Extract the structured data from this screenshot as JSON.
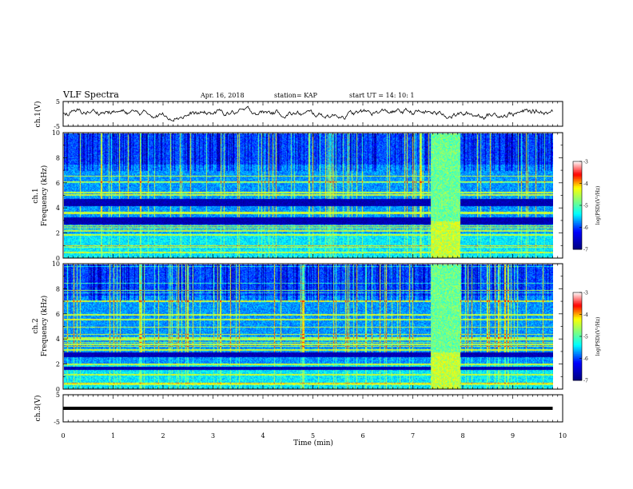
{
  "header": {
    "title": "VLF Spectra",
    "date": "Apr. 16, 2018",
    "station": "station= KAP",
    "start_time": "start  UT =   14: 10: 1"
  },
  "chart_data": [
    {
      "type": "line",
      "panel": "ch1-waveform",
      "ylabel": "ch.1(V)",
      "ylim": [
        -5,
        5
      ],
      "yticks": [
        "5",
        "-5"
      ],
      "xlim": [
        0,
        10
      ],
      "series": [
        {
          "x_range": [
            0,
            9.8
          ],
          "mean": 0.2,
          "amplitude": 1.2
        }
      ]
    },
    {
      "type": "heatmap",
      "panel": "ch1-spectrogram",
      "ylabel_line1": "ch.1",
      "ylabel_line2": "Frequency  (kHz)",
      "ylim": [
        0,
        10
      ],
      "yticks": [
        "0",
        "2",
        "4",
        "6",
        "8",
        "10"
      ],
      "xlim": [
        0,
        10
      ],
      "x_data_end": 9.8,
      "colorbar": {
        "label": "log(PSD)(V²/Hz)",
        "range": [
          -7,
          -3
        ],
        "ticks": [
          "-3",
          "-4",
          "-5",
          "-6",
          "-7"
        ]
      },
      "burst_interval_min": [
        7.35,
        7.95
      ],
      "dark_bands_khz": [
        [
          2.75,
          3.3
        ],
        [
          4.2,
          4.75
        ]
      ],
      "bright_lines_khz": [
        0.5,
        0.9,
        1.9,
        2.2,
        2.5,
        3.6,
        3.7,
        5.1,
        5.3,
        6.6
      ]
    },
    {
      "type": "heatmap",
      "panel": "ch2-spectrogram",
      "ylabel_line1": "ch.2",
      "ylabel_line2": "Frequency  (kHz)",
      "ylim": [
        0,
        10
      ],
      "yticks": [
        "0",
        "2",
        "4",
        "6",
        "8",
        "10"
      ],
      "xlim": [
        0,
        10
      ],
      "x_data_end": 9.8,
      "colorbar": {
        "label": "log(PSD)(V²/Hz)",
        "range": [
          -7,
          -3
        ],
        "ticks": [
          "-3",
          "-4",
          "-5",
          "-6",
          "-7"
        ]
      },
      "burst_interval_min": [
        7.35,
        7.95
      ],
      "dark_bands_khz": [
        [
          2.6,
          3.0
        ],
        [
          1.6,
          1.8
        ]
      ],
      "bright_lines_khz": [
        0.4,
        1.2,
        2.0,
        3.2,
        3.6,
        4.0,
        5.0,
        5.6,
        6.0
      ]
    },
    {
      "type": "line",
      "panel": "ch3-waveform",
      "ylabel": "ch.3(V)",
      "ylim": [
        -5,
        5
      ],
      "yticks": [
        "5",
        "-5"
      ],
      "xlim": [
        0,
        10
      ],
      "xlabel": "Time  (min)",
      "xticks": [
        "0",
        "1",
        "2",
        "3",
        "4",
        "5",
        "6",
        "7",
        "8",
        "9",
        "10"
      ],
      "series": [
        {
          "x_range": [
            0,
            9.8
          ],
          "value": 0
        }
      ]
    }
  ],
  "colors": {
    "axis": "#000000",
    "colormap": [
      "#00007f",
      "#0000ff",
      "#007fff",
      "#00ffff",
      "#7fff7f",
      "#ffff00",
      "#ff7f00",
      "#ff0000",
      "#ffffff"
    ]
  }
}
